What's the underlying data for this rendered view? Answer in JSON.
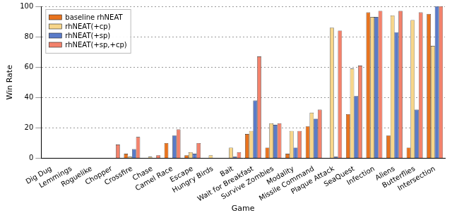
{
  "chart_data": {
    "type": "bar",
    "x_label": "Game",
    "y_label": "Win Rate",
    "categories": [
      "Dig Dug",
      "Lemmings",
      "Roguelike",
      "Chopper",
      "Crossfire",
      "Chase",
      "Camel Race",
      "Escape",
      "Hungry Birds",
      "Bait",
      "Wait for Breakfast",
      "Survive Zombies",
      "Modality",
      "Missile Command",
      "Plaque Attack",
      "SeaQuest",
      "Infection",
      "Aliens",
      "Butterflies",
      "Intersection"
    ],
    "series": [
      {
        "name": "baseline rhNEAT",
        "color": "#e8731e",
        "values": [
          0,
          0,
          0,
          0,
          3,
          0,
          10,
          2,
          0,
          0,
          16,
          7,
          3,
          21,
          0,
          29,
          96,
          15,
          7,
          95
        ]
      },
      {
        "name": "rhNEAT(+cp)",
        "color": "#f7d68a",
        "values": [
          0,
          0,
          0,
          0,
          1,
          1,
          0,
          4,
          2,
          7,
          18,
          23,
          18,
          30,
          86,
          59,
          93,
          94,
          91,
          74
        ]
      },
      {
        "name": "rhNEAT(+sp)",
        "color": "#5a7bc9",
        "values": [
          0,
          0,
          0,
          0,
          6,
          0,
          15,
          3,
          0,
          1,
          38,
          22,
          7,
          26,
          1,
          41,
          93,
          83,
          32,
          100
        ]
      },
      {
        "name": "rhNEAT(+sp,+cp)",
        "color": "#f3826c",
        "values": [
          0,
          0,
          0,
          9,
          14,
          2,
          19,
          10,
          0,
          4,
          67,
          23,
          18,
          32,
          84,
          61,
          97,
          97,
          96,
          100
        ]
      }
    ],
    "ylim": [
      0,
      100
    ],
    "yticks": [
      0,
      20,
      40,
      60,
      80,
      100
    ],
    "grid": true,
    "legend": "upper left"
  }
}
